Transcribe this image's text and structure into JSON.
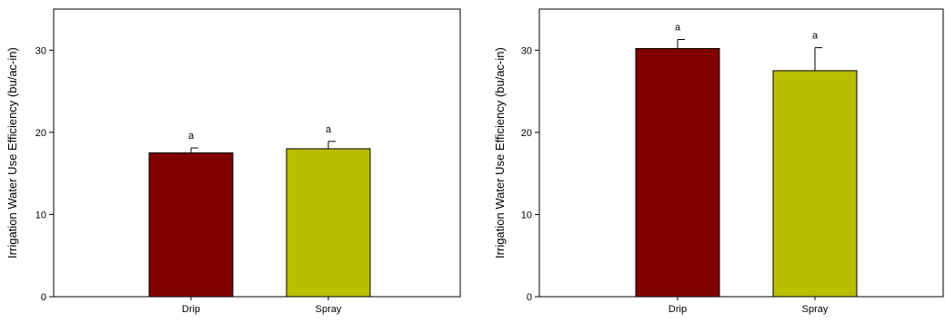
{
  "chart_data": [
    {
      "type": "bar",
      "title": "",
      "xlabel": "",
      "ylabel": "Irrigation Water Use Efficiency (bu/ac-in)",
      "categories": [
        "Drip",
        "Spray"
      ],
      "values": [
        17.5,
        18.0
      ],
      "error": [
        0.6,
        0.9
      ],
      "significance_letters": [
        "a",
        "a"
      ],
      "bar_colors": [
        "#800000",
        "#b8be00"
      ],
      "ylim": [
        0,
        35
      ],
      "yticks": [
        0,
        10,
        20,
        30
      ],
      "grid": false
    },
    {
      "type": "bar",
      "title": "",
      "xlabel": "",
      "ylabel": "Irrigation Water Use Efficiency (bu/ac-in)",
      "categories": [
        "Drip",
        "Spray"
      ],
      "values": [
        30.2,
        27.5
      ],
      "error": [
        1.1,
        2.8
      ],
      "significance_letters": [
        "a",
        "a"
      ],
      "bar_colors": [
        "#800000",
        "#b8be00"
      ],
      "ylim": [
        0,
        35
      ],
      "yticks": [
        0,
        10,
        20,
        30
      ],
      "grid": false
    }
  ]
}
